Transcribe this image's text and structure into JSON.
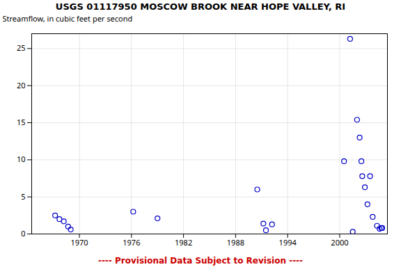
{
  "chart_data": {
    "type": "scatter",
    "title": "USGS 01117950 MOSCOW BROOK NEAR HOPE VALLEY, RI",
    "ylabel": "Streamflow, in cubic feet per second",
    "footnote": "---- Provisional Data Subject to Revision ----",
    "x": [
      1967.2,
      1967.7,
      1968.2,
      1968.7,
      1969.0,
      1976.2,
      1979.0,
      1990.5,
      1991.2,
      1991.5,
      1992.2,
      2000.5,
      2001.2,
      2001.5,
      2002.0,
      2002.3,
      2002.6,
      2002.9,
      2003.2,
      2002.5,
      2003.5,
      2003.8,
      2004.3,
      2004.6,
      2004.8,
      2004.9
    ],
    "values": [
      2.5,
      2.0,
      1.7,
      1.0,
      0.6,
      3.0,
      2.1,
      6.0,
      1.4,
      0.5,
      1.3,
      9.8,
      26.3,
      0.3,
      15.4,
      13.0,
      7.8,
      6.3,
      4.0,
      9.8,
      7.8,
      2.3,
      1.1,
      0.7,
      0.8,
      0.8
    ],
    "color": "#0000cc",
    "marker": "open_circle",
    "xlim": [
      1964.5,
      2005.5
    ],
    "ylim": [
      0,
      27
    ],
    "xticks": [
      1970,
      1976,
      1982,
      1988,
      1994,
      2000
    ],
    "yticks": [
      0,
      5,
      10,
      15,
      20,
      25
    ],
    "grid": true
  }
}
